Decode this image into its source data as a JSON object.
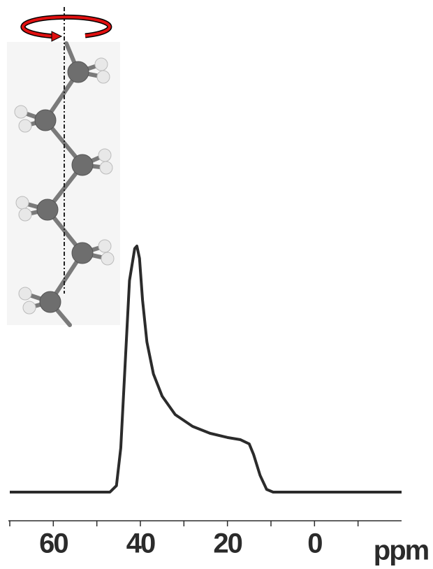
{
  "chart_data": {
    "type": "line",
    "x": [
      70,
      47,
      45.5,
      44.5,
      43.5,
      42.5,
      41.3,
      40.8,
      40.2,
      39.5,
      38.5,
      37,
      35,
      32,
      28,
      24,
      20,
      17,
      15,
      14,
      12.5,
      11,
      9.5,
      -20
    ],
    "series": [
      {
        "color": "#2b2b2b",
        "values": [
          0,
          0,
          2.6,
          18,
          52,
          86,
          99,
          100,
          95,
          78,
          61,
          48,
          39,
          31.5,
          26.7,
          23.9,
          22.2,
          21.3,
          19.6,
          15.3,
          6.8,
          1.1,
          0,
          0
        ]
      }
    ],
    "xlim": [
      70,
      -20
    ],
    "xticks": [
      60,
      40,
      20,
      0
    ],
    "minor_xticks": [
      70,
      50,
      30,
      10,
      -10
    ],
    "ylim": [
      0,
      100
    ],
    "xlabel": "ppm"
  }
}
